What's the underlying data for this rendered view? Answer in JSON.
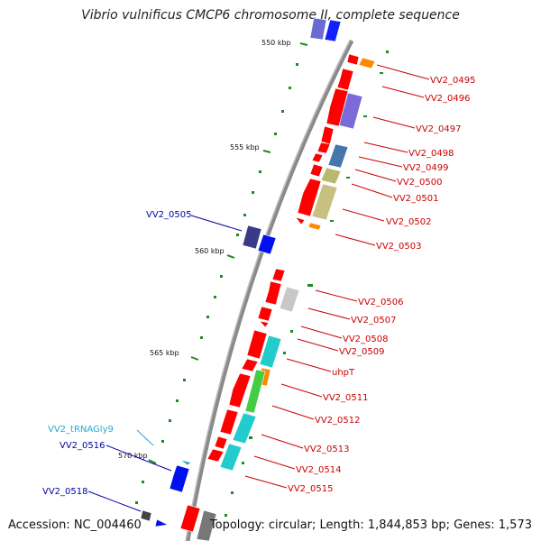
{
  "title": "Vibrio vulnificus CMCP6 chromosome II, complete sequence",
  "accession": "Accession: NC_004460",
  "topology": "Topology: circular; Length: 1,844,853 bp; Genes: 1,573",
  "colors": {
    "label_red": "#cc0000",
    "label_blue": "#0000aa",
    "label_cyan": "#22aacc",
    "gene_red": "#ff0000",
    "tick_green": "#228822"
  },
  "scale_labels": [
    "550 kbp",
    "555 kbp",
    "560 kbp",
    "565 kbp",
    "570 kbp"
  ],
  "gene_labels": [
    {
      "id": "VV2_0495"
    },
    {
      "id": "VV2_0496"
    },
    {
      "id": "VV2_0497"
    },
    {
      "id": "VV2_0498"
    },
    {
      "id": "VV2_0499"
    },
    {
      "id": "VV2_0500"
    },
    {
      "id": "VV2_0501"
    },
    {
      "id": "VV2_0502"
    },
    {
      "id": "VV2_0503"
    },
    {
      "id": "VV2_0505"
    },
    {
      "id": "VV2_0506"
    },
    {
      "id": "VV2_0507"
    },
    {
      "id": "VV2_0508"
    },
    {
      "id": "VV2_0509"
    },
    {
      "id": "uhpT"
    },
    {
      "id": "VV2_0511"
    },
    {
      "id": "VV2_0512"
    },
    {
      "id": "VV2_tRNAGly9"
    },
    {
      "id": "VV2_0513"
    },
    {
      "id": "VV2_0516"
    },
    {
      "id": "VV2_0514"
    },
    {
      "id": "VV2_0515"
    },
    {
      "id": "VV2_0518"
    }
  ]
}
